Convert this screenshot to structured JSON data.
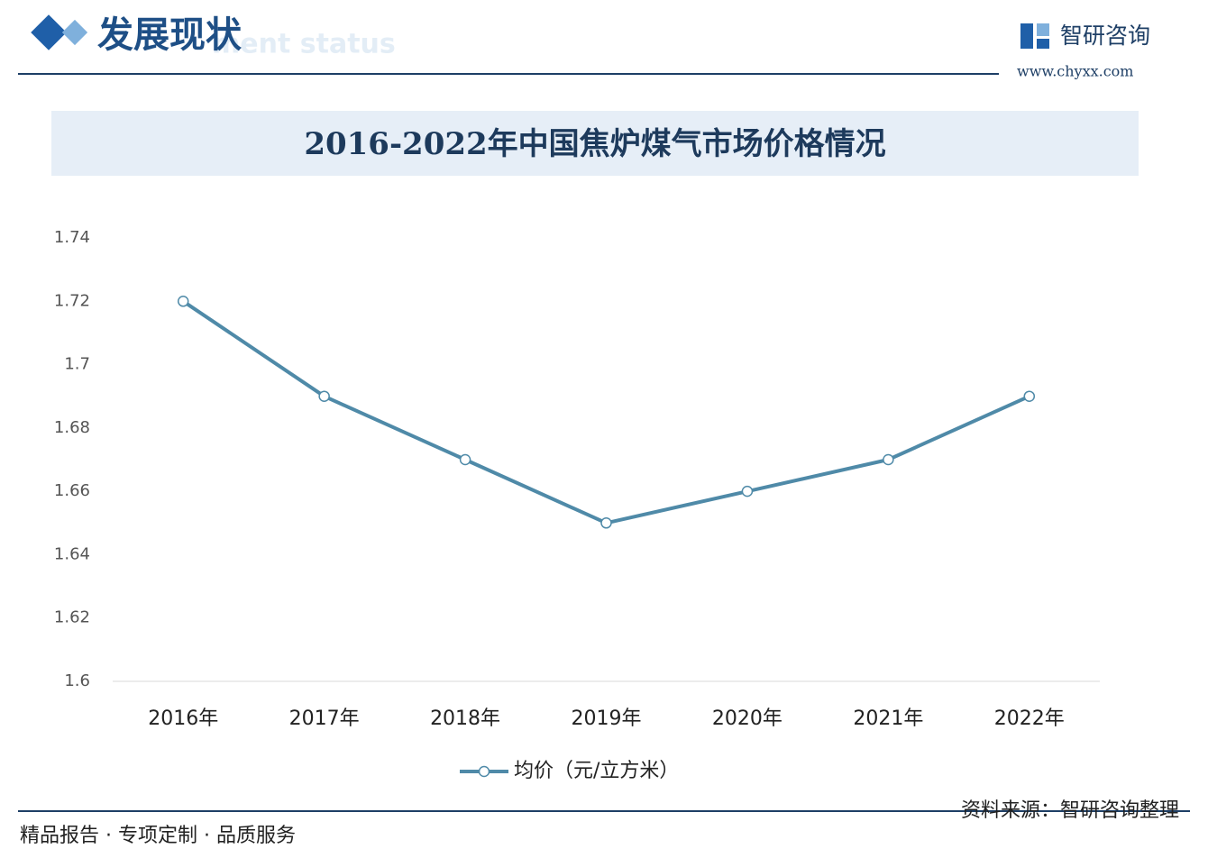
{
  "header": {
    "title": "发展现状",
    "subtitle": "ment status",
    "brand": "智研咨询",
    "website": "www.chyxx.com"
  },
  "chart_data": {
    "type": "line",
    "title": "2016-2022年中国焦炉煤气市场价格情况",
    "categories": [
      "2016年",
      "2017年",
      "2018年",
      "2019年",
      "2020年",
      "2021年",
      "2022年"
    ],
    "series": [
      {
        "name": "均价（元/立方米）",
        "color": "#4f8aa8",
        "values": [
          1.72,
          1.69,
          1.67,
          1.65,
          1.66,
          1.67,
          1.69
        ]
      }
    ],
    "ylim": [
      1.6,
      1.74
    ],
    "yticks": [
      1.6,
      1.62,
      1.64,
      1.66,
      1.68,
      1.7,
      1.72,
      1.74
    ],
    "grid": false,
    "legend": "bottom"
  },
  "source": "资料来源：智研咨询整理",
  "footer": "精品报告 · 专项定制 · 品质服务"
}
